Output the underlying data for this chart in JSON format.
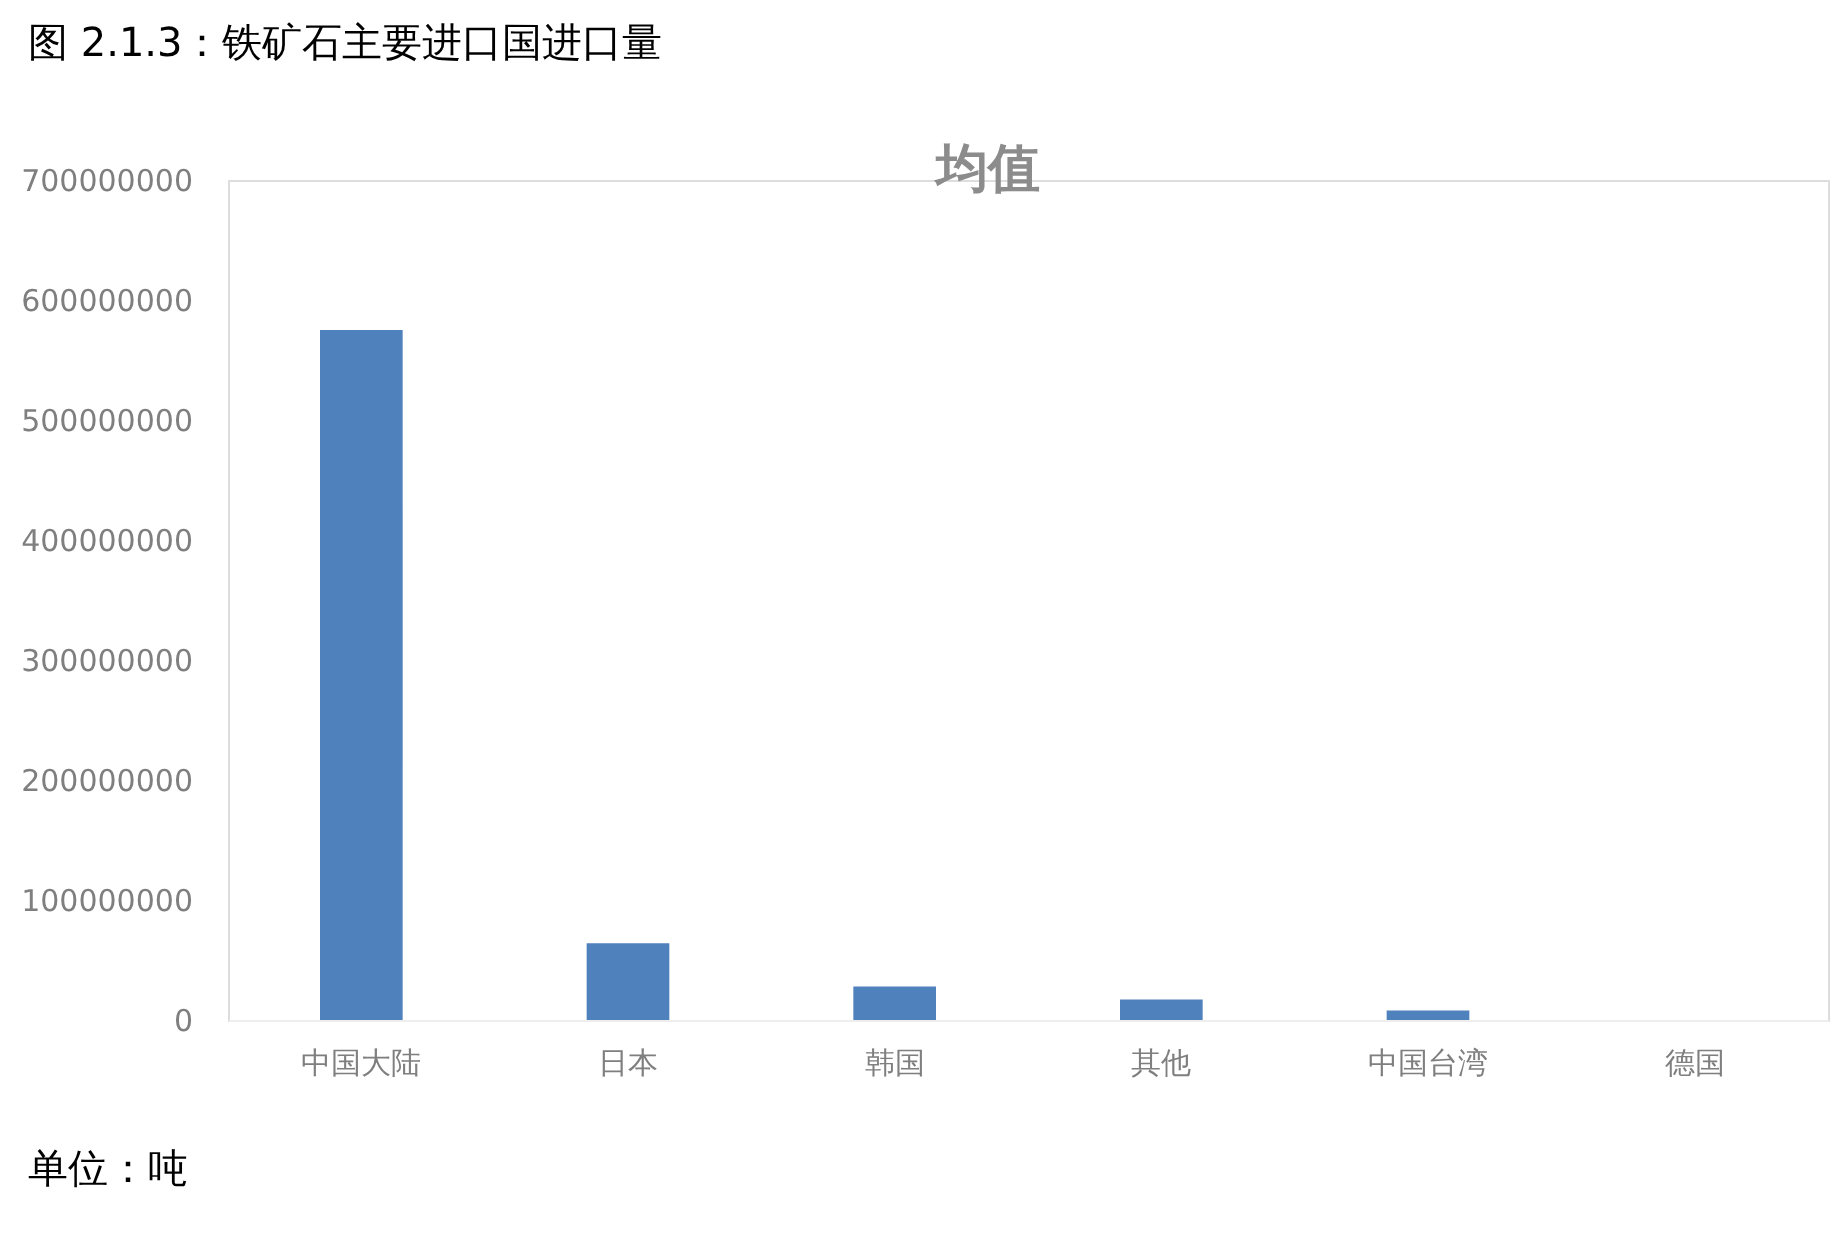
{
  "chart_data": {
    "type": "bar",
    "title": "图 2.1.3：铁矿石主要进口国进口量",
    "subtitle": "均值",
    "categories": [
      "中国大陆",
      "日本",
      "韩国",
      "其他",
      "中国台湾",
      "德国"
    ],
    "series": [
      {
        "color": "#4f81bd",
        "values": [
          575000000,
          64000000,
          28000000,
          17000000,
          8000000,
          0
        ]
      }
    ],
    "ylim": [
      0,
      700000000
    ],
    "yticks": [
      0,
      100000000,
      200000000,
      300000000,
      400000000,
      500000000,
      600000000,
      700000000
    ],
    "grid": false,
    "legend": false,
    "annotations": [
      "单位：吨"
    ]
  }
}
